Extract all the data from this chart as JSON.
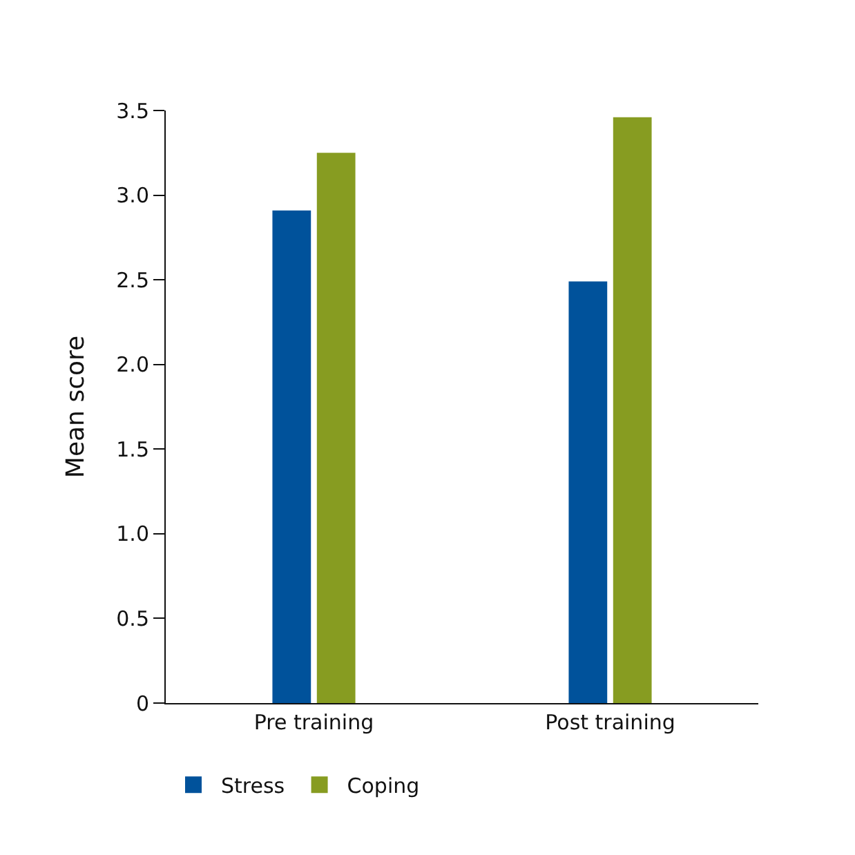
{
  "chart_data": {
    "type": "bar",
    "ylabel": "Mean score",
    "categories": [
      "Pre training",
      "Post training"
    ],
    "series": [
      {
        "name": "Stress",
        "color": "#00529b",
        "values": [
          2.91,
          2.49
        ]
      },
      {
        "name": "Coping",
        "color": "#879c21",
        "values": [
          3.25,
          3.46
        ]
      }
    ],
    "ylim": [
      0,
      3.5
    ],
    "yticks": [
      0,
      0.5,
      {
        "value": 1,
        "label": "1.0"
      },
      1.5,
      {
        "value": 2,
        "label": "2.0"
      },
      2.5,
      {
        "value": 3,
        "label": "3.0"
      },
      3.5
    ],
    "legend": "bottom"
  }
}
